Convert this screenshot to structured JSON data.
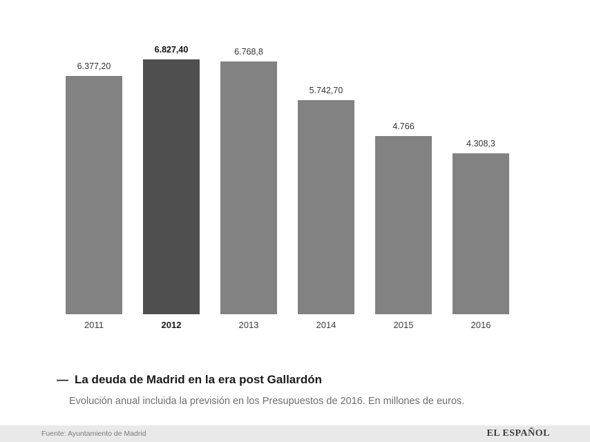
{
  "chart_data": {
    "type": "bar",
    "categories": [
      "2011",
      "2012",
      "2013",
      "2014",
      "2015",
      "2016"
    ],
    "values": [
      6377.2,
      6827.4,
      6768.8,
      5742.7,
      4766,
      4308.3
    ],
    "value_labels": [
      "6.377,20",
      "6.827,40",
      "6.768,8",
      "5.742,70",
      "4.766",
      "4.308,3"
    ],
    "highlighted_index": 1,
    "title": "La deuda de Madrid en la era post Gallardón",
    "subtitle": "Evolución anual incluida la previsión en los Presupuestos de 2016. En millones de euros.",
    "xlabel": "",
    "ylabel": "",
    "ylim": [
      0,
      6827.4
    ],
    "grid": false,
    "legend": false,
    "bar_color": "#828282",
    "highlight_color": "#4f4f4f"
  },
  "caption": {
    "dash": "—",
    "title": "La deuda de Madrid en la era post Gallardón",
    "subtitle": "Evolución anual incluida la previsión en los Presupuestos de 2016. En millones de euros."
  },
  "footer": {
    "source": "Fuente: Ayuntamiento de Madrid",
    "brand": "EL ESPAÑOL"
  }
}
